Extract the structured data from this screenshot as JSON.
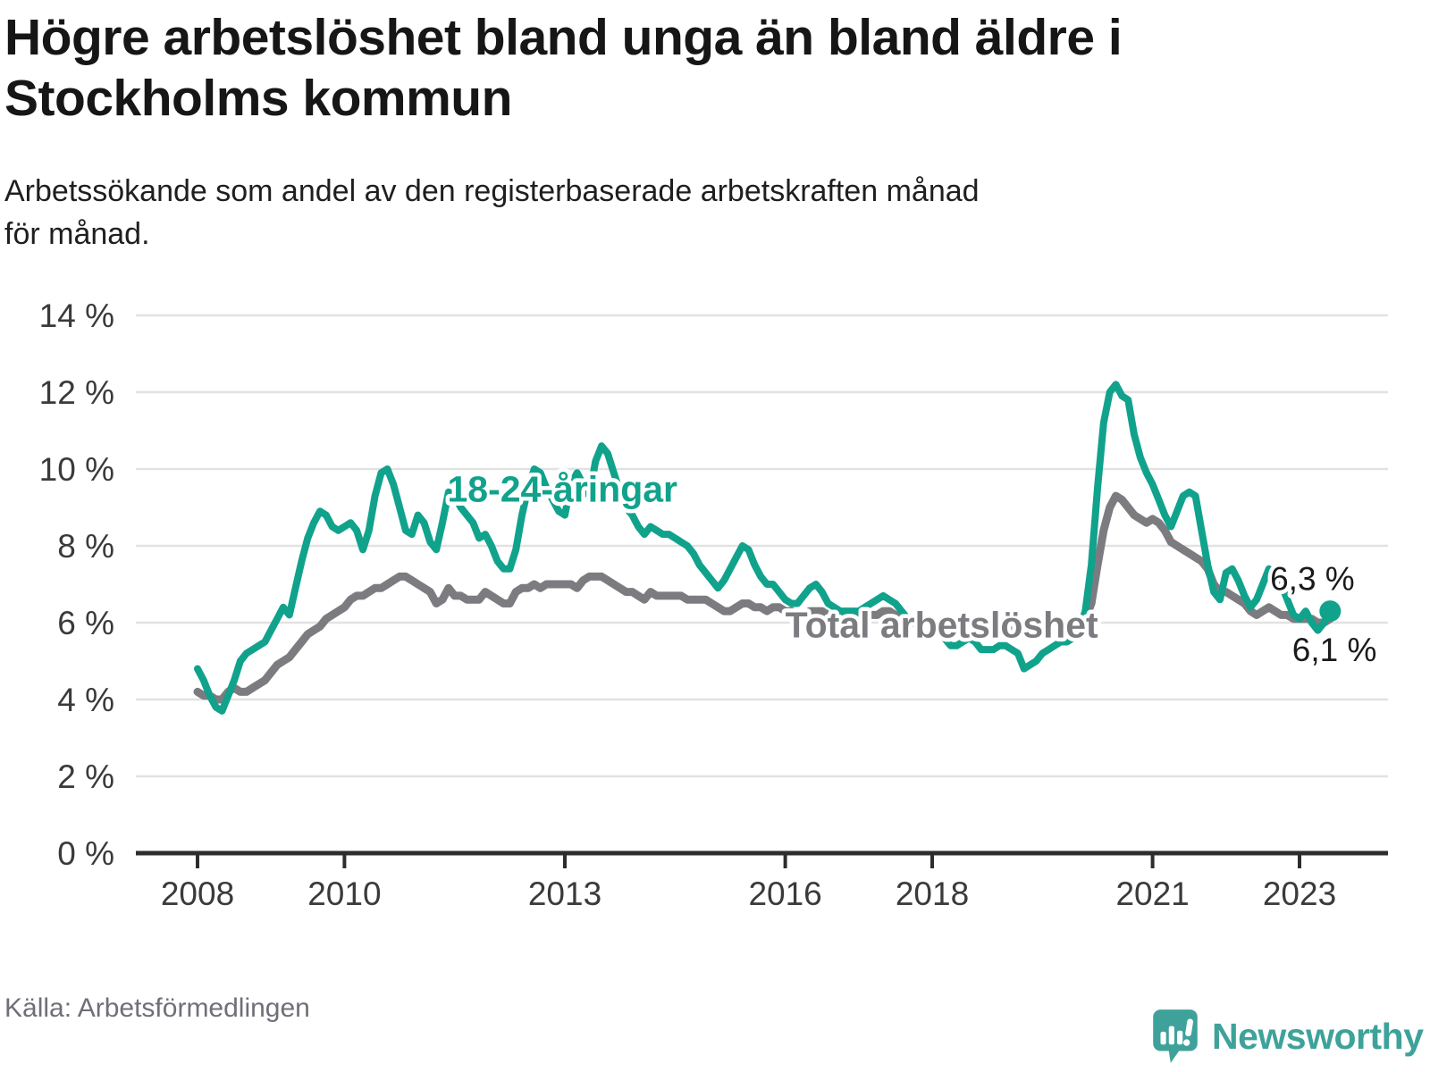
{
  "header": {
    "title_lines": [
      "Högre arbetslöshet bland unga än bland äldre i",
      "Stockholms kommun"
    ],
    "subtitle_lines": [
      "Arbetssökande som andel av den registerbaserade arbetskraften månad",
      "för månad."
    ]
  },
  "footer": {
    "source": "Källa: Arbetsförmedlingen",
    "logo_text": "Newsworthy",
    "logo_color": "#3ea29a"
  },
  "chart_data": {
    "type": "line",
    "title": "Högre arbetslöshet bland unga än bland äldre i Stockholms kommun",
    "subtitle": "Arbetssökande som andel av den registerbaserade arbetskraften månad för månad.",
    "unit": "%",
    "x_start": "2008-01",
    "x_end": "2023-06",
    "x_step": "month",
    "ylim": [
      0,
      14
    ],
    "grid": "horizontal",
    "legend_position": "inline-labels",
    "colors": {
      "youth": "#11a28c",
      "total": "#7c7c80",
      "grid": "#e2e2e2",
      "axis": "#2d2d2d",
      "tick_text": "#3a3a3a"
    },
    "yticks": [
      {
        "v": 0,
        "label": "0 %"
      },
      {
        "v": 2,
        "label": "2 %"
      },
      {
        "v": 4,
        "label": "4 %"
      },
      {
        "v": 6,
        "label": "6 %"
      },
      {
        "v": 8,
        "label": "8 %"
      },
      {
        "v": 10,
        "label": "10 %"
      },
      {
        "v": 12,
        "label": "12 %"
      },
      {
        "v": 14,
        "label": "14 %"
      }
    ],
    "xticks": [
      {
        "v": 2008,
        "label": "2008"
      },
      {
        "v": 2010,
        "label": "2010"
      },
      {
        "v": 2013,
        "label": "2013"
      },
      {
        "v": 2016,
        "label": "2016"
      },
      {
        "v": 2018,
        "label": "2018"
      },
      {
        "v": 2021,
        "label": "2021"
      },
      {
        "v": 2023,
        "label": "2023"
      }
    ],
    "series": [
      {
        "name": "Total arbetslöshet",
        "color": "#7c7c80",
        "end_value_label": "6,1 %",
        "values": [
          4.2,
          4.1,
          4.1,
          4.0,
          4.0,
          4.2,
          4.3,
          4.2,
          4.2,
          4.3,
          4.4,
          4.5,
          4.7,
          4.9,
          5.0,
          5.1,
          5.3,
          5.5,
          5.7,
          5.8,
          5.9,
          6.1,
          6.2,
          6.3,
          6.4,
          6.6,
          6.7,
          6.7,
          6.8,
          6.9,
          6.9,
          7.0,
          7.1,
          7.2,
          7.2,
          7.1,
          7.0,
          6.9,
          6.8,
          6.5,
          6.6,
          6.9,
          6.7,
          6.7,
          6.6,
          6.6,
          6.6,
          6.8,
          6.7,
          6.6,
          6.5,
          6.5,
          6.8,
          6.9,
          6.9,
          7.0,
          6.9,
          7.0,
          7.0,
          7.0,
          7.0,
          7.0,
          6.9,
          7.1,
          7.2,
          7.2,
          7.2,
          7.1,
          7.0,
          6.9,
          6.8,
          6.8,
          6.7,
          6.6,
          6.8,
          6.7,
          6.7,
          6.7,
          6.7,
          6.7,
          6.6,
          6.6,
          6.6,
          6.6,
          6.5,
          6.4,
          6.3,
          6.3,
          6.4,
          6.5,
          6.5,
          6.4,
          6.4,
          6.3,
          6.4,
          6.4,
          6.3,
          6.3,
          6.2,
          6.2,
          6.3,
          6.3,
          6.3,
          6.2,
          6.2,
          6.2,
          6.2,
          6.2,
          6.2,
          6.2,
          6.2,
          6.2,
          6.3,
          6.3,
          6.2,
          6.1,
          6.1,
          6.0,
          6.0,
          6.0,
          6.0,
          6.0,
          5.9,
          5.9,
          5.9,
          6.0,
          6.0,
          5.9,
          5.9,
          5.8,
          5.8,
          5.8,
          5.8,
          5.8,
          5.8,
          5.8,
          5.8,
          5.9,
          6.0,
          6.0,
          5.9,
          5.9,
          6.0,
          6.0,
          6.0,
          6.1,
          6.5,
          7.5,
          8.4,
          9.0,
          9.3,
          9.2,
          9.0,
          8.8,
          8.7,
          8.6,
          8.7,
          8.6,
          8.4,
          8.1,
          8.0,
          7.9,
          7.8,
          7.7,
          7.6,
          7.4,
          7.0,
          6.8,
          6.8,
          6.7,
          6.6,
          6.5,
          6.3,
          6.2,
          6.3,
          6.4,
          6.3,
          6.2,
          6.2,
          6.1,
          6.1,
          6.1,
          6.1,
          6.0,
          6.0,
          6.1
        ]
      },
      {
        "name": "18-24-åringar",
        "color": "#11a28c",
        "end_value_label": "6,3 %",
        "end_dot": true,
        "values": [
          4.8,
          4.5,
          4.1,
          3.8,
          3.7,
          4.1,
          4.5,
          5.0,
          5.2,
          5.3,
          5.4,
          5.5,
          5.8,
          6.1,
          6.4,
          6.2,
          6.9,
          7.6,
          8.2,
          8.6,
          8.9,
          8.8,
          8.5,
          8.4,
          8.5,
          8.6,
          8.4,
          7.9,
          8.4,
          9.3,
          9.9,
          10.0,
          9.6,
          9.0,
          8.4,
          8.3,
          8.8,
          8.6,
          8.1,
          7.9,
          8.6,
          9.4,
          9.3,
          9.0,
          8.8,
          8.6,
          8.2,
          8.3,
          8.0,
          7.6,
          7.4,
          7.4,
          7.9,
          8.8,
          9.5,
          10.0,
          9.9,
          9.5,
          9.2,
          8.9,
          8.8,
          9.6,
          9.9,
          9.6,
          9.3,
          10.2,
          10.6,
          10.4,
          9.9,
          9.4,
          9.0,
          8.8,
          8.5,
          8.3,
          8.5,
          8.4,
          8.3,
          8.3,
          8.2,
          8.1,
          8.0,
          7.8,
          7.5,
          7.3,
          7.1,
          6.9,
          7.1,
          7.4,
          7.7,
          8.0,
          7.9,
          7.5,
          7.2,
          7.0,
          7.0,
          6.8,
          6.6,
          6.5,
          6.5,
          6.7,
          6.9,
          7.0,
          6.8,
          6.5,
          6.4,
          6.3,
          6.3,
          6.3,
          6.3,
          6.4,
          6.5,
          6.6,
          6.7,
          6.6,
          6.5,
          6.3,
          6.1,
          6.0,
          6.0,
          6.1,
          6.0,
          5.8,
          5.6,
          5.4,
          5.4,
          5.5,
          5.6,
          5.5,
          5.3,
          5.3,
          5.3,
          5.4,
          5.4,
          5.3,
          5.2,
          4.8,
          4.9,
          5.0,
          5.2,
          5.3,
          5.4,
          5.5,
          5.5,
          5.6,
          5.8,
          6.3,
          7.5,
          9.5,
          11.2,
          12.0,
          12.2,
          11.9,
          11.8,
          10.9,
          10.3,
          9.9,
          9.6,
          9.2,
          8.8,
          8.5,
          8.9,
          9.3,
          9.4,
          9.3,
          8.4,
          7.5,
          6.8,
          6.6,
          7.3,
          7.4,
          7.1,
          6.7,
          6.4,
          6.6,
          7.0,
          7.4,
          7.2,
          7.0,
          6.6,
          6.2,
          6.1,
          6.3,
          6.0,
          5.8,
          6.0,
          6.3
        ]
      }
    ],
    "annotations": [
      {
        "id": "youth-series-label",
        "text": "18-24-åringar",
        "year": 2011.4,
        "pct": 9.15,
        "color": "#11a28c",
        "bold": true,
        "size": 41
      },
      {
        "id": "total-series-label",
        "text": "Total arbetslöshet",
        "year": 2016.0,
        "pct": 5.62,
        "color": "#7c7c80",
        "bold": true,
        "size": 41
      },
      {
        "id": "youth-end-value",
        "text": "6,3 %",
        "year": 2022.6,
        "pct": 6.85,
        "color": "#1a1a1a",
        "bold": false,
        "size": 37
      },
      {
        "id": "total-end-value",
        "text": "6,1 %",
        "year": 2022.9,
        "pct": 5.0,
        "color": "#1a1a1a",
        "bold": false,
        "size": 37
      }
    ]
  }
}
